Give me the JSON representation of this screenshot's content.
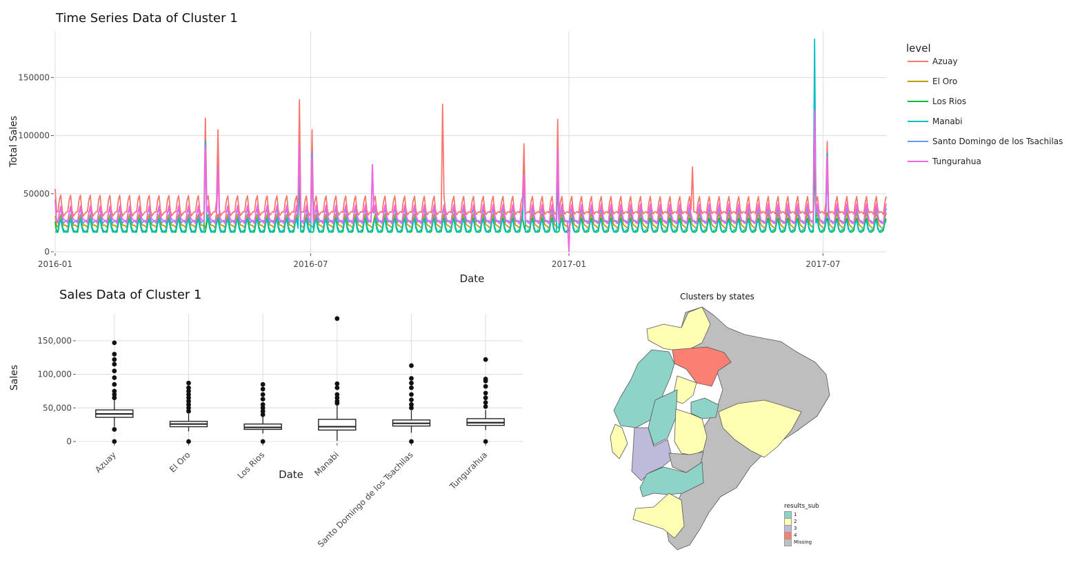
{
  "chart_data": [
    {
      "type": "line",
      "title": "Time Series Data of Cluster  1",
      "xlabel": "Date",
      "ylabel": "Total Sales",
      "x_range": [
        "2016-01-01",
        "2017-08-15"
      ],
      "x_ticks": [
        "2016-01",
        "2016-07",
        "2017-01",
        "2017-07"
      ],
      "ylim": [
        0,
        190000
      ],
      "y_ticks": [
        0,
        50000,
        100000,
        150000
      ],
      "y_tick_labels": [
        "0",
        "50000",
        "100000",
        "150000"
      ],
      "grid": true,
      "legend": {
        "title": "level",
        "position": "right"
      },
      "series": [
        {
          "name": "Azuay",
          "color": "#F8766D",
          "typical": 36000,
          "spikes": [
            [
              "2016-01-01",
              54000
            ],
            [
              "2016-04-17",
              115000
            ],
            [
              "2016-04-26",
              105000
            ],
            [
              "2016-06-23",
              131000
            ],
            [
              "2016-07-02",
              105000
            ],
            [
              "2016-10-03",
              127000
            ],
            [
              "2016-11-30",
              93000
            ],
            [
              "2016-12-24",
              114000
            ],
            [
              "2017-03-30",
              73000
            ],
            [
              "2017-06-25",
              150000
            ],
            [
              "2017-07-04",
              95000
            ]
          ]
        },
        {
          "name": "El Oro",
          "color": "#B79F00",
          "typical": 24000,
          "spikes": [
            [
              "2016-01-01",
              31000
            ],
            [
              "2016-06-23",
              85000
            ],
            [
              "2016-11-30",
              70000
            ],
            [
              "2017-06-25",
              90000
            ]
          ]
        },
        {
          "name": "Los Rios",
          "color": "#00BA38",
          "typical": 20000,
          "spikes": [
            [
              "2016-01-01",
              26000
            ],
            [
              "2016-06-23",
              60000
            ],
            [
              "2017-06-25",
              80000
            ]
          ]
        },
        {
          "name": "Manabi",
          "color": "#00BFC4",
          "typical": 20000,
          "spikes": [
            [
              "2016-04-17",
              95000
            ],
            [
              "2016-06-23",
              90000
            ],
            [
              "2016-07-02",
              85000
            ],
            [
              "2016-11-30",
              68000
            ],
            [
              "2016-12-24",
              60000
            ],
            [
              "2017-06-25",
              183000
            ],
            [
              "2017-07-04",
              85000
            ]
          ]
        },
        {
          "name": "Santo Domingo de los Tsachilas",
          "color": "#619CFF",
          "typical": 28000,
          "spikes": [
            [
              "2016-01-01",
              45000
            ],
            [
              "2016-04-17",
              92000
            ],
            [
              "2016-04-26",
              73000
            ],
            [
              "2016-06-23",
              90000
            ],
            [
              "2016-07-02",
              85000
            ],
            [
              "2016-08-14",
              75000
            ],
            [
              "2016-11-30",
              66000
            ],
            [
              "2016-12-24",
              85000
            ],
            [
              "2017-06-25",
              120000
            ],
            [
              "2017-07-04",
              80000
            ]
          ]
        },
        {
          "name": "Tungurahua",
          "color": "#F564E3",
          "typical": 29000,
          "spikes": [
            [
              "2016-01-01",
              44000
            ],
            [
              "2016-04-17",
              90000
            ],
            [
              "2016-04-26",
              72000
            ],
            [
              "2016-06-23",
              92000
            ],
            [
              "2016-07-02",
              80000
            ],
            [
              "2016-08-14",
              75000
            ],
            [
              "2016-11-30",
              68000
            ],
            [
              "2016-12-24",
              88000
            ],
            [
              "2017-01-01",
              0
            ],
            [
              "2017-06-25",
              122000
            ],
            [
              "2017-07-04",
              82000
            ]
          ]
        }
      ]
    },
    {
      "type": "box",
      "title": "Sales Data of Cluster  1",
      "xlabel": "Date",
      "ylabel": "Sales",
      "categories": [
        "Azuay",
        "El Oro",
        "Los Rios",
        "Manabi",
        "Santo Domingo de los Tsachilas",
        "Tungurahua"
      ],
      "ylim": [
        0,
        190000
      ],
      "y_ticks": [
        0,
        50000,
        100000,
        150000
      ],
      "y_tick_labels": [
        "0",
        "50,000",
        "100,000",
        "150,000"
      ],
      "grid": true,
      "boxes": [
        {
          "min": 22000,
          "q1": 36000,
          "median": 41000,
          "q3": 47000,
          "max": 62000,
          "outliers": [
            0,
            18000,
            65000,
            70000,
            75000,
            85000,
            95000,
            105000,
            115000,
            122000,
            130000,
            147000
          ]
        },
        {
          "min": 15000,
          "q1": 22000,
          "median": 26000,
          "q3": 30000,
          "max": 41000,
          "outliers": [
            0,
            45000,
            50000,
            55000,
            60000,
            65000,
            70000,
            75000,
            80000,
            87000
          ]
        },
        {
          "min": 12000,
          "q1": 18000,
          "median": 21000,
          "q3": 26000,
          "max": 37000,
          "outliers": [
            0,
            40000,
            45000,
            50000,
            55000,
            63000,
            70000,
            78000,
            85000
          ]
        },
        {
          "min": 1000,
          "q1": 17000,
          "median": 22000,
          "q3": 33000,
          "max": 55000,
          "outliers": [
            57000,
            60000,
            65000,
            70000,
            80000,
            86000,
            183000
          ]
        },
        {
          "min": 13000,
          "q1": 23000,
          "median": 27000,
          "q3": 32000,
          "max": 46000,
          "outliers": [
            0,
            50000,
            55000,
            62000,
            70000,
            80000,
            87000,
            94000,
            113000
          ]
        },
        {
          "min": 17000,
          "q1": 24000,
          "median": 28000,
          "q3": 34000,
          "max": 47000,
          "outliers": [
            0,
            52000,
            58000,
            65000,
            72000,
            82000,
            90000,
            93000,
            122000
          ]
        }
      ]
    }
  ],
  "map": {
    "title": "Clusters by states",
    "legend_title": "results_sub",
    "legend": [
      {
        "label": "1",
        "color": "#8DD3C7"
      },
      {
        "label": "2",
        "color": "#FFFFB3"
      },
      {
        "label": "3",
        "color": "#BEBADA"
      },
      {
        "label": "4",
        "color": "#FB8072"
      },
      {
        "label": "Missing",
        "color": "#BEBEBE"
      }
    ]
  }
}
